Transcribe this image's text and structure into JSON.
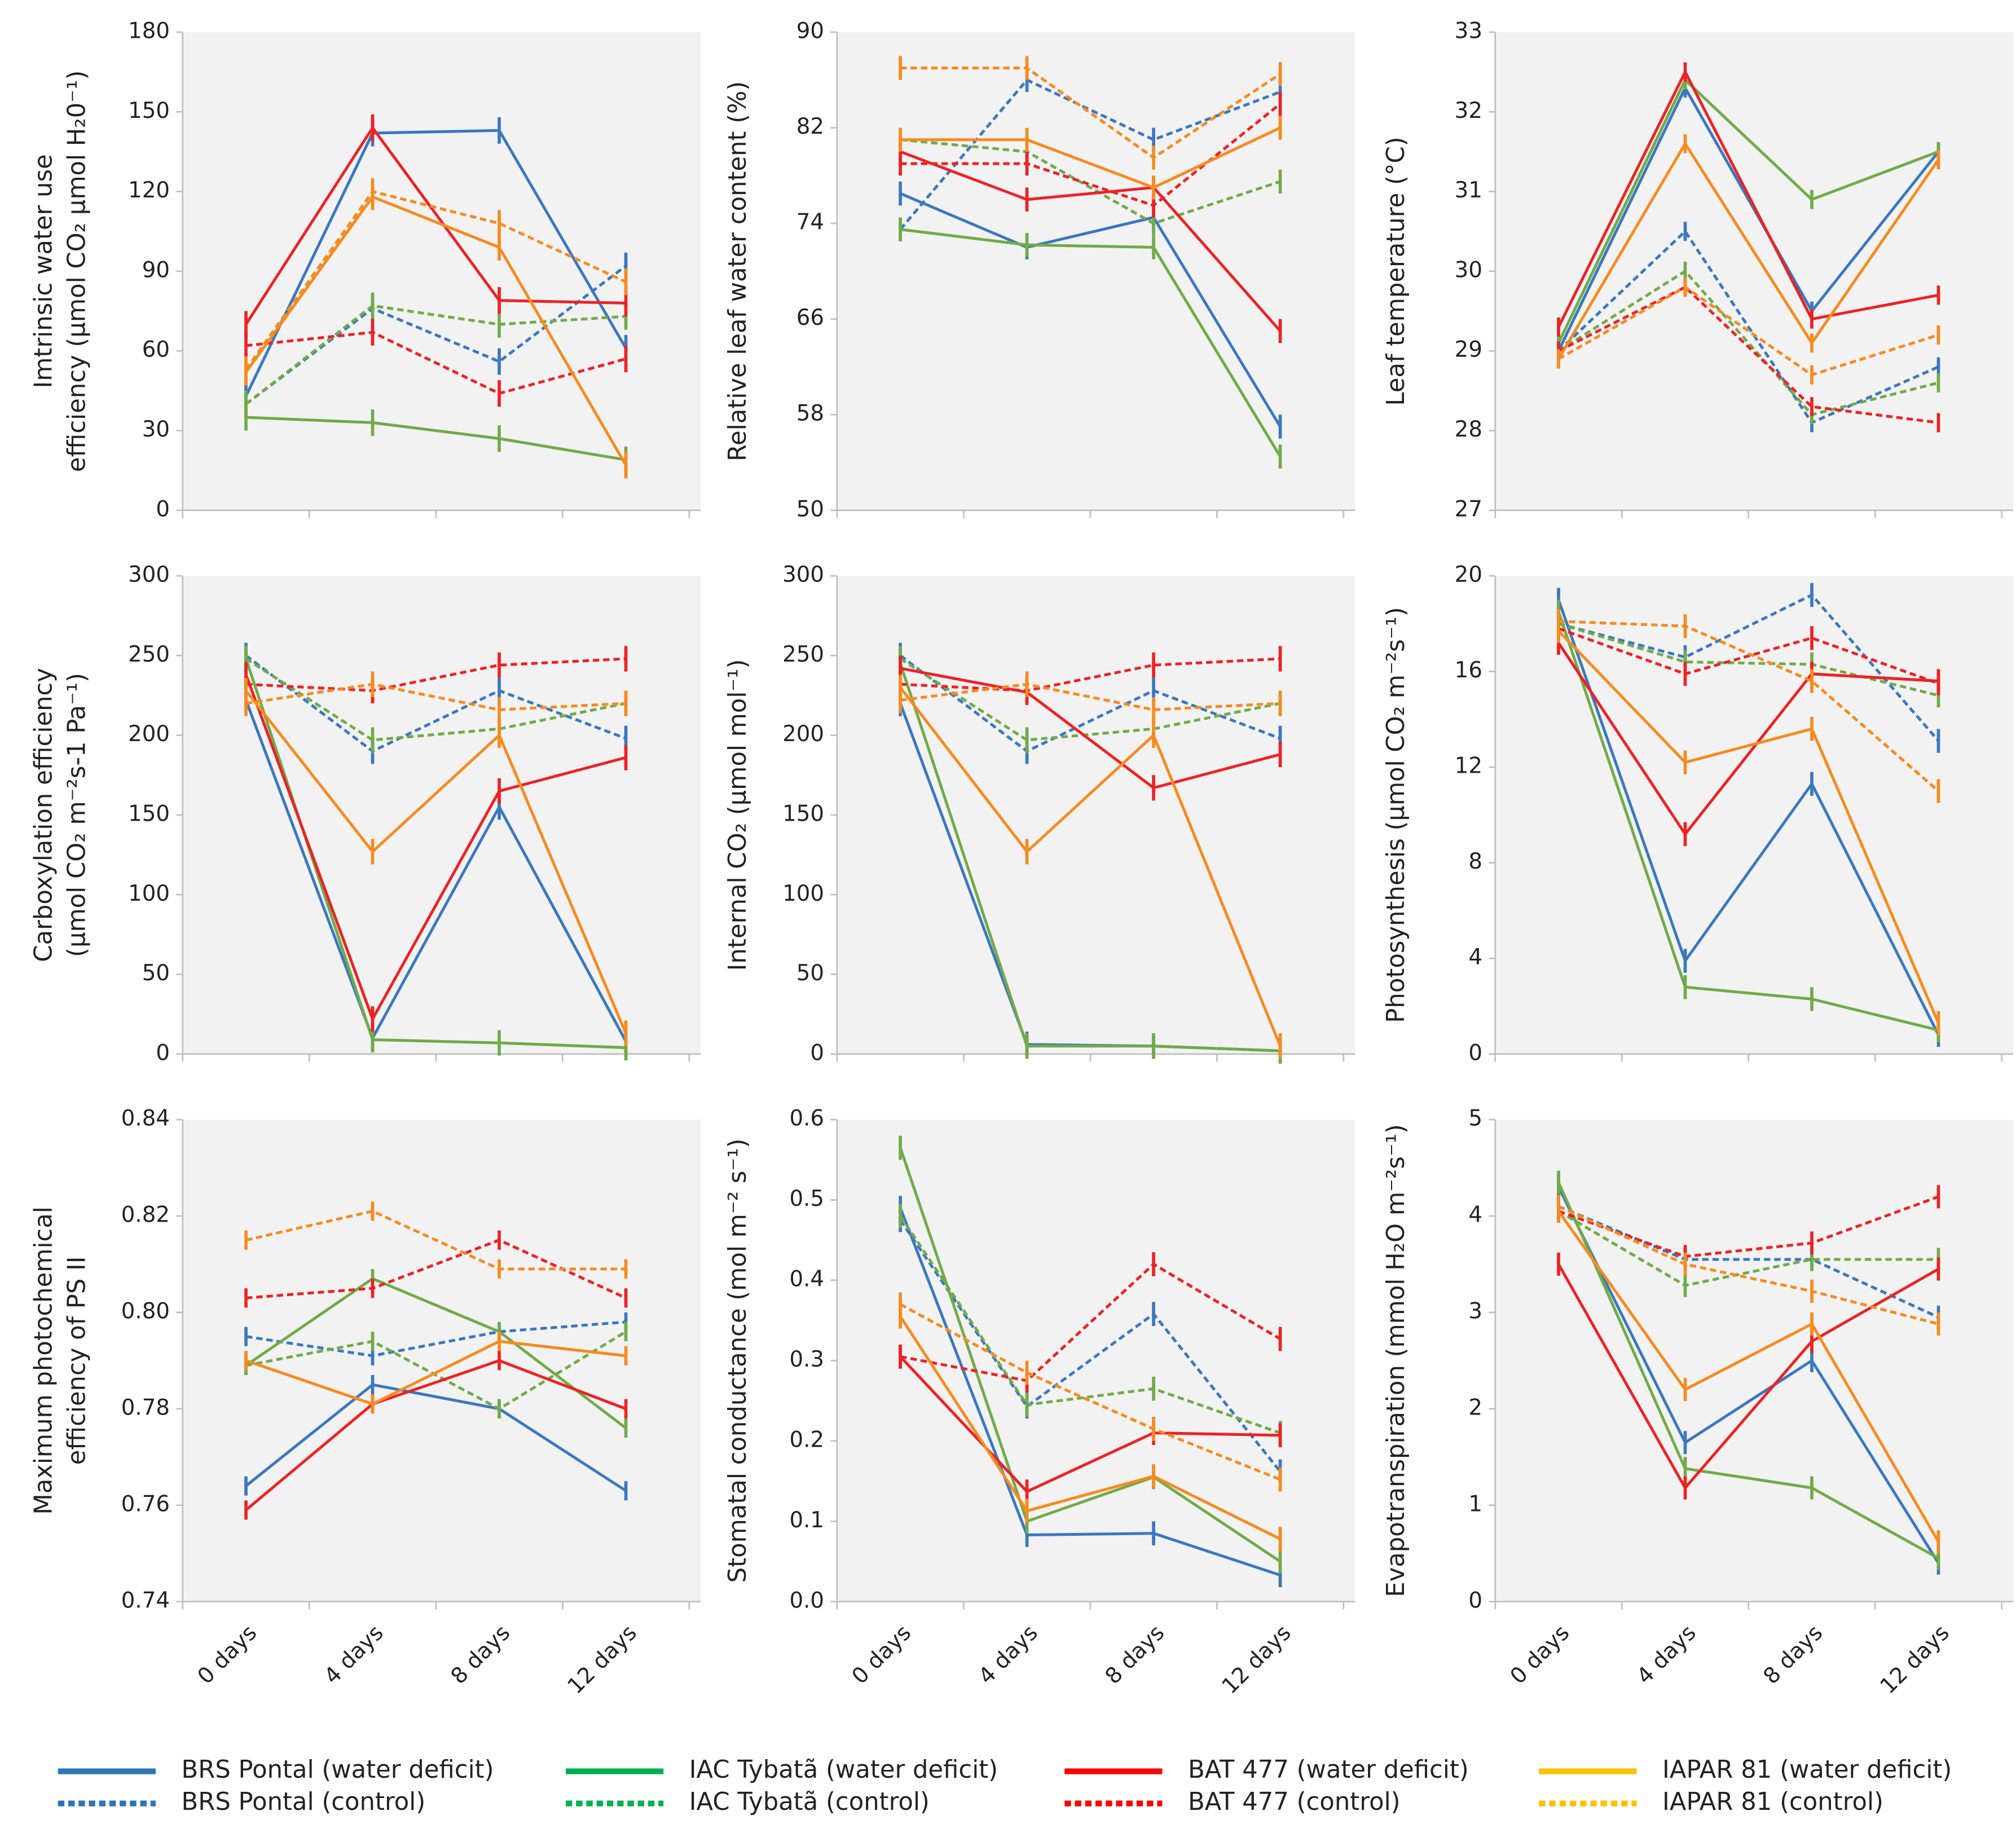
{
  "categories": [
    "0 days",
    "4 days",
    "8 days",
    "12 days"
  ],
  "legend": [
    {
      "name": "BRS Pontal (water deficit)",
      "color": "#2e75b6",
      "dash": false
    },
    {
      "name": "BRS Pontal (control)",
      "color": "#2e75b6",
      "dash": true
    },
    {
      "name": "IAC Tybatã (water deficit)",
      "color": "#00b050",
      "dash": false
    },
    {
      "name": "IAC Tybatã (control)",
      "color": "#00b050",
      "dash": true
    },
    {
      "name": "BAT 477 (water deficit)",
      "color": "#ff0000",
      "dash": false
    },
    {
      "name": "BAT 477 (control)",
      "color": "#ff0000",
      "dash": true
    },
    {
      "name": "IAPAR 81 (water deficit)",
      "color": "#ffc000",
      "dash": false
    },
    {
      "name": "IAPAR 81 (control)",
      "color": "#ffc000",
      "dash": true
    }
  ],
  "chart_data": [
    {
      "type": "line",
      "ylabel": [
        "Imtrinsic water use",
        "efficiency (μmol CO₂ μmol H₂0⁻¹)"
      ],
      "ylim": [
        0,
        180
      ],
      "yticks": [
        0,
        30,
        60,
        90,
        120,
        150,
        180
      ],
      "error": 5,
      "series": [
        {
          "color": "#3a78c0",
          "dash": false,
          "values": [
            43,
            142,
            143,
            61
          ]
        },
        {
          "color": "#3a78c0",
          "dash": true,
          "values": [
            40,
            76,
            56,
            92
          ]
        },
        {
          "color": "#71ab48",
          "dash": false,
          "values": [
            35,
            33,
            27,
            19
          ]
        },
        {
          "color": "#71ab48",
          "dash": true,
          "values": [
            40,
            77,
            70,
            73
          ]
        },
        {
          "color": "#ed2224",
          "dash": false,
          "values": [
            70,
            144,
            79,
            78
          ]
        },
        {
          "color": "#ed2224",
          "dash": true,
          "values": [
            62,
            67,
            44,
            57
          ]
        },
        {
          "color": "#f68b1f",
          "dash": false,
          "values": [
            52,
            118,
            99,
            17
          ]
        },
        {
          "color": "#f68b1f",
          "dash": true,
          "values": [
            53,
            120,
            108,
            86
          ]
        }
      ]
    },
    {
      "type": "line",
      "ylabel": [
        "Relative leaf water content (%)"
      ],
      "ylim": [
        50,
        90
      ],
      "yticks": [
        50,
        58,
        66,
        74,
        82,
        90
      ],
      "error": 1,
      "series": [
        {
          "color": "#3a78c0",
          "dash": false,
          "values": [
            76.5,
            72,
            74.5,
            57
          ]
        },
        {
          "color": "#3a78c0",
          "dash": true,
          "values": [
            73.5,
            86,
            81,
            85
          ]
        },
        {
          "color": "#71ab48",
          "dash": false,
          "values": [
            73.5,
            72.2,
            72,
            54.5
          ]
        },
        {
          "color": "#71ab48",
          "dash": true,
          "values": [
            81,
            80,
            74,
            77.5
          ]
        },
        {
          "color": "#ed2224",
          "dash": false,
          "values": [
            80,
            76,
            77,
            65
          ]
        },
        {
          "color": "#ed2224",
          "dash": true,
          "values": [
            79,
            79,
            75.5,
            84
          ]
        },
        {
          "color": "#f68b1f",
          "dash": false,
          "values": [
            81,
            81,
            77,
            82
          ]
        },
        {
          "color": "#f68b1f",
          "dash": true,
          "values": [
            87,
            87,
            79.5,
            86.5
          ]
        }
      ]
    },
    {
      "type": "line",
      "ylabel": [
        "Leaf temperature (°C)"
      ],
      "ylim": [
        27,
        33
      ],
      "yticks": [
        27,
        28,
        29,
        30,
        31,
        32,
        33
      ],
      "error": 0.12,
      "series": [
        {
          "color": "#3a78c0",
          "dash": false,
          "values": [
            29,
            32.3,
            29.5,
            31.5
          ]
        },
        {
          "color": "#3a78c0",
          "dash": true,
          "values": [
            29,
            30.5,
            28.1,
            28.8
          ]
        },
        {
          "color": "#71ab48",
          "dash": false,
          "values": [
            29.1,
            32.4,
            30.9,
            31.5
          ]
        },
        {
          "color": "#71ab48",
          "dash": true,
          "values": [
            29,
            30,
            28.2,
            28.6
          ]
        },
        {
          "color": "#ed2224",
          "dash": false,
          "values": [
            29.3,
            32.5,
            29.4,
            29.7
          ]
        },
        {
          "color": "#ed2224",
          "dash": true,
          "values": [
            29,
            29.8,
            28.3,
            28.1
          ]
        },
        {
          "color": "#f68b1f",
          "dash": false,
          "values": [
            28.9,
            31.6,
            29.1,
            31.4
          ]
        },
        {
          "color": "#f68b1f",
          "dash": true,
          "values": [
            28.9,
            29.8,
            28.7,
            29.2
          ]
        }
      ]
    },
    {
      "type": "line",
      "ylabel": [
        "Carboxylation efficiency",
        "(μmol CO₂ m⁻²s-1 Pa⁻¹)"
      ],
      "ylim": [
        0,
        300
      ],
      "yticks": [
        0,
        50,
        100,
        150,
        200,
        250,
        300
      ],
      "error": 8,
      "series": [
        {
          "color": "#3a78c0",
          "dash": false,
          "values": [
            222,
            10,
            155,
            8
          ]
        },
        {
          "color": "#3a78c0",
          "dash": true,
          "values": [
            250,
            190,
            228,
            198
          ]
        },
        {
          "color": "#71ab48",
          "dash": false,
          "values": [
            248,
            9,
            7,
            4
          ]
        },
        {
          "color": "#71ab48",
          "dash": true,
          "values": [
            248,
            197,
            204,
            220
          ]
        },
        {
          "color": "#ed2224",
          "dash": false,
          "values": [
            238,
            22,
            165,
            186
          ]
        },
        {
          "color": "#ed2224",
          "dash": true,
          "values": [
            232,
            228,
            244,
            248
          ]
        },
        {
          "color": "#f68b1f",
          "dash": false,
          "values": [
            228,
            127,
            200,
            13
          ]
        },
        {
          "color": "#f68b1f",
          "dash": true,
          "values": [
            220,
            232,
            216,
            220
          ]
        }
      ]
    },
    {
      "type": "line",
      "ylabel": [
        "Internal CO₂  (μmol mol⁻¹)"
      ],
      "ylim": [
        0,
        300
      ],
      "yticks": [
        0,
        50,
        100,
        150,
        200,
        250,
        300
      ],
      "error": 8,
      "series": [
        {
          "color": "#3a78c0",
          "dash": false,
          "values": [
            220,
            6,
            5,
            2
          ]
        },
        {
          "color": "#3a78c0",
          "dash": true,
          "values": [
            250,
            190,
            228,
            198
          ]
        },
        {
          "color": "#71ab48",
          "dash": false,
          "values": [
            245,
            5,
            5,
            2
          ]
        },
        {
          "color": "#71ab48",
          "dash": true,
          "values": [
            248,
            197,
            204,
            220
          ]
        },
        {
          "color": "#ed2224",
          "dash": false,
          "values": [
            242,
            227,
            167,
            188
          ]
        },
        {
          "color": "#ed2224",
          "dash": true,
          "values": [
            232,
            228,
            244,
            248
          ]
        },
        {
          "color": "#f68b1f",
          "dash": false,
          "values": [
            230,
            127,
            200,
            5
          ]
        },
        {
          "color": "#f68b1f",
          "dash": true,
          "values": [
            222,
            232,
            216,
            220
          ]
        }
      ]
    },
    {
      "type": "line",
      "ylabel": [
        "Photosynthesis (μmol CO₂ m⁻²s⁻¹)"
      ],
      "ylim": [
        0,
        20
      ],
      "yticks": [
        0,
        4,
        8,
        12,
        16,
        20
      ],
      "error": 0.5,
      "series": [
        {
          "color": "#3a78c0",
          "dash": false,
          "values": [
            19,
            3.9,
            11.3,
            0.8
          ]
        },
        {
          "color": "#3a78c0",
          "dash": true,
          "values": [
            18,
            16.6,
            19.2,
            13.1
          ]
        },
        {
          "color": "#71ab48",
          "dash": false,
          "values": [
            18.5,
            2.8,
            2.3,
            1
          ]
        },
        {
          "color": "#71ab48",
          "dash": true,
          "values": [
            18,
            16.4,
            16.3,
            15
          ]
        },
        {
          "color": "#ed2224",
          "dash": false,
          "values": [
            17.2,
            9.2,
            15.9,
            15.6
          ]
        },
        {
          "color": "#ed2224",
          "dash": true,
          "values": [
            17.8,
            15.9,
            17.4,
            15.5
          ]
        },
        {
          "color": "#f68b1f",
          "dash": false,
          "values": [
            17.7,
            12.2,
            13.6,
            1.3
          ]
        },
        {
          "color": "#f68b1f",
          "dash": true,
          "values": [
            18.1,
            17.9,
            15.6,
            11
          ]
        }
      ]
    },
    {
      "type": "line",
      "ylabel": [
        "Maximum photochemical",
        "efficiency  of PS II"
      ],
      "ylim": [
        0.74,
        0.84
      ],
      "yticks": [
        0.74,
        0.76,
        0.78,
        {
          "value": 0.8,
          "label": "0.80"
        },
        0.82,
        0.84
      ],
      "error": 0.002,
      "series": [
        {
          "color": "#3a78c0",
          "dash": false,
          "values": [
            0.764,
            0.785,
            0.78,
            0.763
          ]
        },
        {
          "color": "#3a78c0",
          "dash": true,
          "values": [
            0.795,
            0.791,
            0.796,
            0.798
          ]
        },
        {
          "color": "#71ab48",
          "dash": false,
          "values": [
            0.789,
            0.807,
            0.796,
            0.776
          ]
        },
        {
          "color": "#71ab48",
          "dash": true,
          "values": [
            0.789,
            0.794,
            0.78,
            0.796
          ]
        },
        {
          "color": "#ed2224",
          "dash": false,
          "values": [
            0.759,
            0.781,
            0.79,
            0.78
          ]
        },
        {
          "color": "#ed2224",
          "dash": true,
          "values": [
            0.803,
            0.805,
            0.815,
            0.803
          ]
        },
        {
          "color": "#f68b1f",
          "dash": false,
          "values": [
            0.79,
            0.781,
            0.794,
            0.791
          ]
        },
        {
          "color": "#f68b1f",
          "dash": true,
          "values": [
            0.815,
            0.821,
            0.809,
            0.809
          ]
        }
      ]
    },
    {
      "type": "line",
      "ylabel": [
        "Stomatal conductance (mol m⁻² s⁻¹)"
      ],
      "ylim": [
        0,
        0.6
      ],
      "yticks": [
        {
          "value": 0,
          "label": "0.0"
        },
        0.1,
        0.2,
        0.3,
        0.4,
        0.5,
        0.6
      ],
      "error": 0.015,
      "series": [
        {
          "color": "#3a78c0",
          "dash": false,
          "values": [
            0.49,
            0.083,
            0.085,
            0.033
          ]
        },
        {
          "color": "#3a78c0",
          "dash": true,
          "values": [
            0.475,
            0.243,
            0.358,
            0.162
          ]
        },
        {
          "color": "#71ab48",
          "dash": false,
          "values": [
            0.565,
            0.1,
            0.155,
            0.05
          ]
        },
        {
          "color": "#71ab48",
          "dash": true,
          "values": [
            0.48,
            0.245,
            0.265,
            0.21
          ]
        },
        {
          "color": "#ed2224",
          "dash": false,
          "values": [
            0.305,
            0.137,
            0.21,
            0.207
          ]
        },
        {
          "color": "#ed2224",
          "dash": true,
          "values": [
            0.305,
            0.275,
            0.42,
            0.327
          ]
        },
        {
          "color": "#f68b1f",
          "dash": false,
          "values": [
            0.355,
            0.113,
            0.156,
            0.078
          ]
        },
        {
          "color": "#f68b1f",
          "dash": true,
          "values": [
            0.37,
            0.285,
            0.215,
            0.152
          ]
        }
      ]
    },
    {
      "type": "line",
      "ylabel": [
        "Evapotranspiration (mmol H₂O m⁻²s⁻¹)"
      ],
      "ylim": [
        0,
        5
      ],
      "yticks": [
        0,
        1,
        2,
        3,
        4,
        5
      ],
      "error": 0.12,
      "series": [
        {
          "color": "#3a78c0",
          "dash": false,
          "values": [
            4.3,
            1.65,
            2.5,
            0.4
          ]
        },
        {
          "color": "#3a78c0",
          "dash": true,
          "values": [
            4.1,
            3.55,
            3.55,
            2.95
          ]
        },
        {
          "color": "#71ab48",
          "dash": false,
          "values": [
            4.35,
            1.38,
            1.18,
            0.45
          ]
        },
        {
          "color": "#71ab48",
          "dash": true,
          "values": [
            4.05,
            3.28,
            3.55,
            3.55
          ]
        },
        {
          "color": "#ed2224",
          "dash": false,
          "values": [
            3.5,
            1.18,
            2.7,
            3.45
          ]
        },
        {
          "color": "#ed2224",
          "dash": true,
          "values": [
            4.05,
            3.58,
            3.72,
            4.2
          ]
        },
        {
          "color": "#f68b1f",
          "dash": false,
          "values": [
            4.05,
            2.2,
            2.88,
            0.62
          ]
        },
        {
          "color": "#f68b1f",
          "dash": true,
          "values": [
            4.1,
            3.5,
            3.22,
            2.88
          ]
        }
      ]
    }
  ]
}
